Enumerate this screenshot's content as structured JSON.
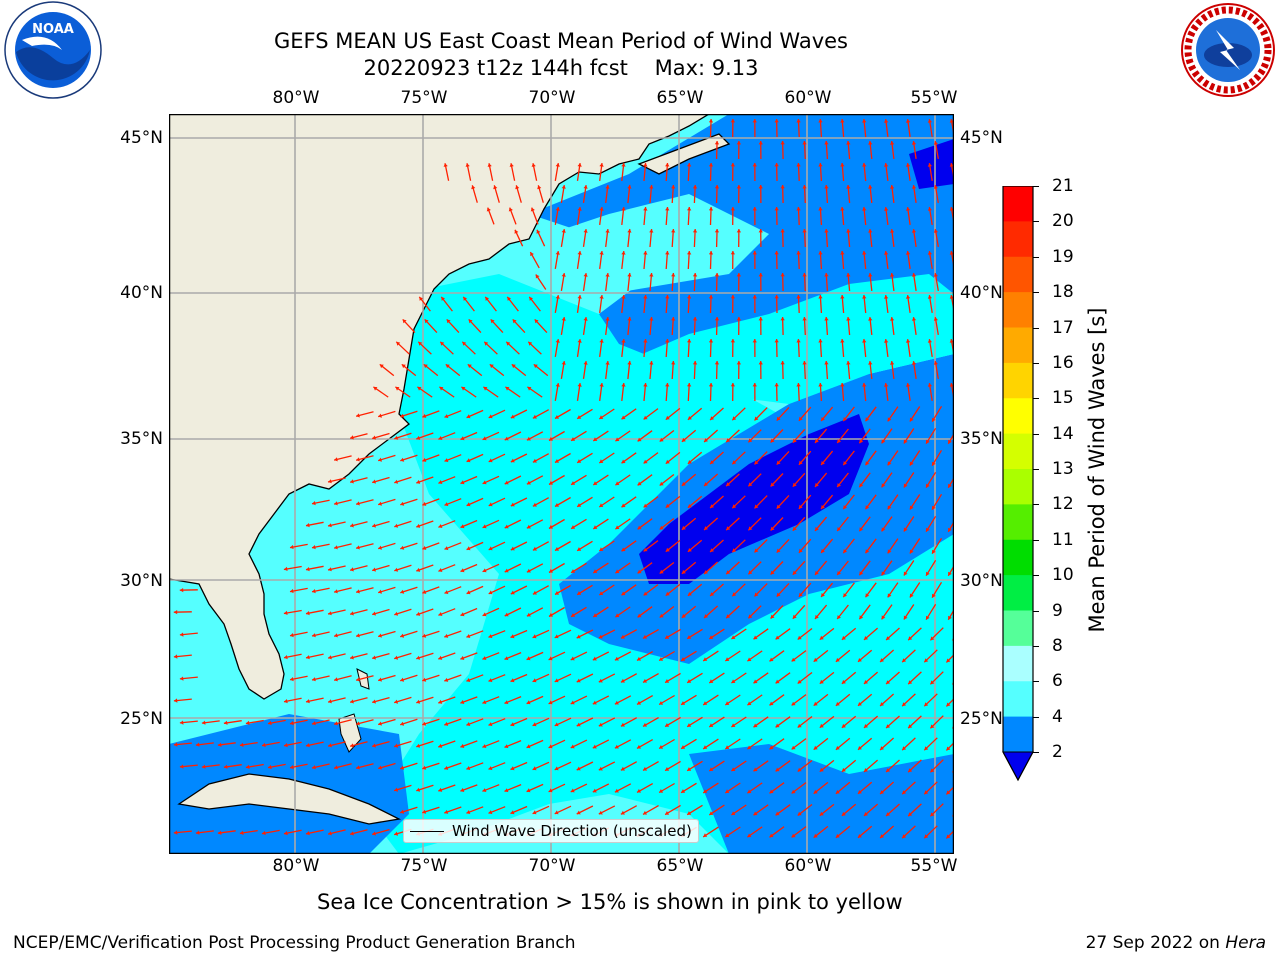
{
  "title": {
    "line1": "GEFS MEAN US East Coast Mean Period of Wind Waves",
    "line2": "20220923 t12z 144h fcst    Max: 9.13"
  },
  "map": {
    "lon_ticks": [
      "80°W",
      "75°W",
      "70°W",
      "65°W",
      "60°W",
      "55°W"
    ],
    "lat_ticks": [
      "45°N",
      "40°N",
      "35°N",
      "30°N",
      "25°N"
    ],
    "legend_label": "Wind Wave Direction (unscaled)"
  },
  "colorbar": {
    "label": "Mean Period of Wind Waves [s]",
    "ticks": [
      "21",
      "20",
      "19",
      "18",
      "17",
      "16",
      "15",
      "14",
      "13",
      "12",
      "11",
      "10",
      "9",
      "8",
      "6",
      "4",
      "2"
    ],
    "colors": [
      "#ff0000",
      "#ff2a00",
      "#ff5500",
      "#ff8000",
      "#ffaa00",
      "#ffd400",
      "#ffff00",
      "#d4ff00",
      "#aaff00",
      "#55ee00",
      "#00dd00",
      "#00ee44",
      "#55ff99",
      "#aaffff",
      "#55ffff",
      "#00ffff",
      "#0088ff"
    ],
    "extend_color": "#0000ee"
  },
  "colors": {
    "land": "#efedde",
    "ocean_light": "#55ffff",
    "ocean_cyan": "#00ffff",
    "ocean_blue": "#0088ff",
    "ocean_dark": "#0000ee",
    "arrows": "#ff2000",
    "grid": "#aaaaaa"
  },
  "ice_note": "Sea Ice Concentration > 15% is shown in pink to yellow",
  "footer": {
    "left": "NCEP/EMC/Verification Post Processing Product Generation Branch",
    "right_date": "27 Sep 2022 on ",
    "right_machine": "Hera"
  },
  "logos": {
    "noaa_text": "NOAA",
    "nws_text": "NATIONAL WEATHER SERVICE"
  }
}
